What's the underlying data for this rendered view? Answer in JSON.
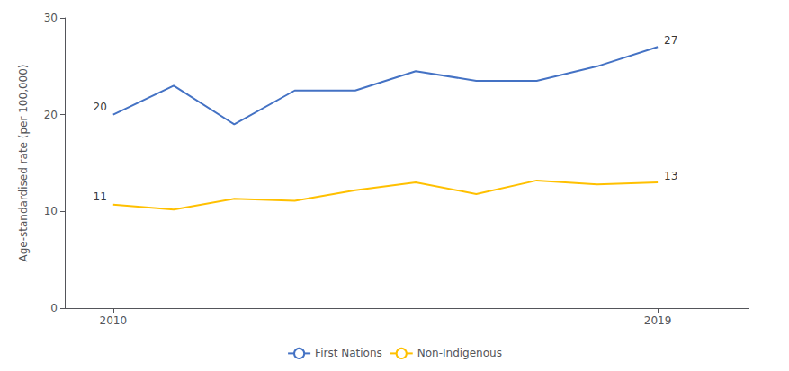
{
  "chart_data": {
    "type": "line",
    "x": [
      2010,
      2011,
      2012,
      2013,
      2014,
      2015,
      2016,
      2017,
      2018,
      2019
    ],
    "series": [
      {
        "name": "First Nations",
        "color": "#4472C4",
        "values": [
          20.0,
          23.0,
          19.0,
          22.5,
          22.5,
          24.5,
          23.5,
          23.5,
          25.0,
          27.0
        ]
      },
      {
        "name": "Non-Indigenous",
        "color": "#FFC000",
        "values": [
          10.7,
          10.2,
          11.3,
          11.1,
          12.2,
          13.0,
          11.8,
          13.2,
          12.8,
          13.0
        ]
      }
    ],
    "ylabel": "Age-standardised rate (per 100,000)",
    "xlim": [
      2009.2,
      2020.5
    ],
    "xticks": [
      2010,
      2019
    ],
    "ylim": [
      0,
      30
    ],
    "yticks": [
      0,
      10,
      20,
      30
    ],
    "grid": false,
    "legend": "bottom",
    "annotations": [
      {
        "text": "20",
        "x": 2010,
        "y": 20.0
      },
      {
        "text": "11",
        "x": 2010,
        "y": 10.7
      },
      {
        "text": "27",
        "x": 2019,
        "y": 27.0
      },
      {
        "text": "13",
        "x": 2019,
        "y": 13.0
      }
    ]
  }
}
